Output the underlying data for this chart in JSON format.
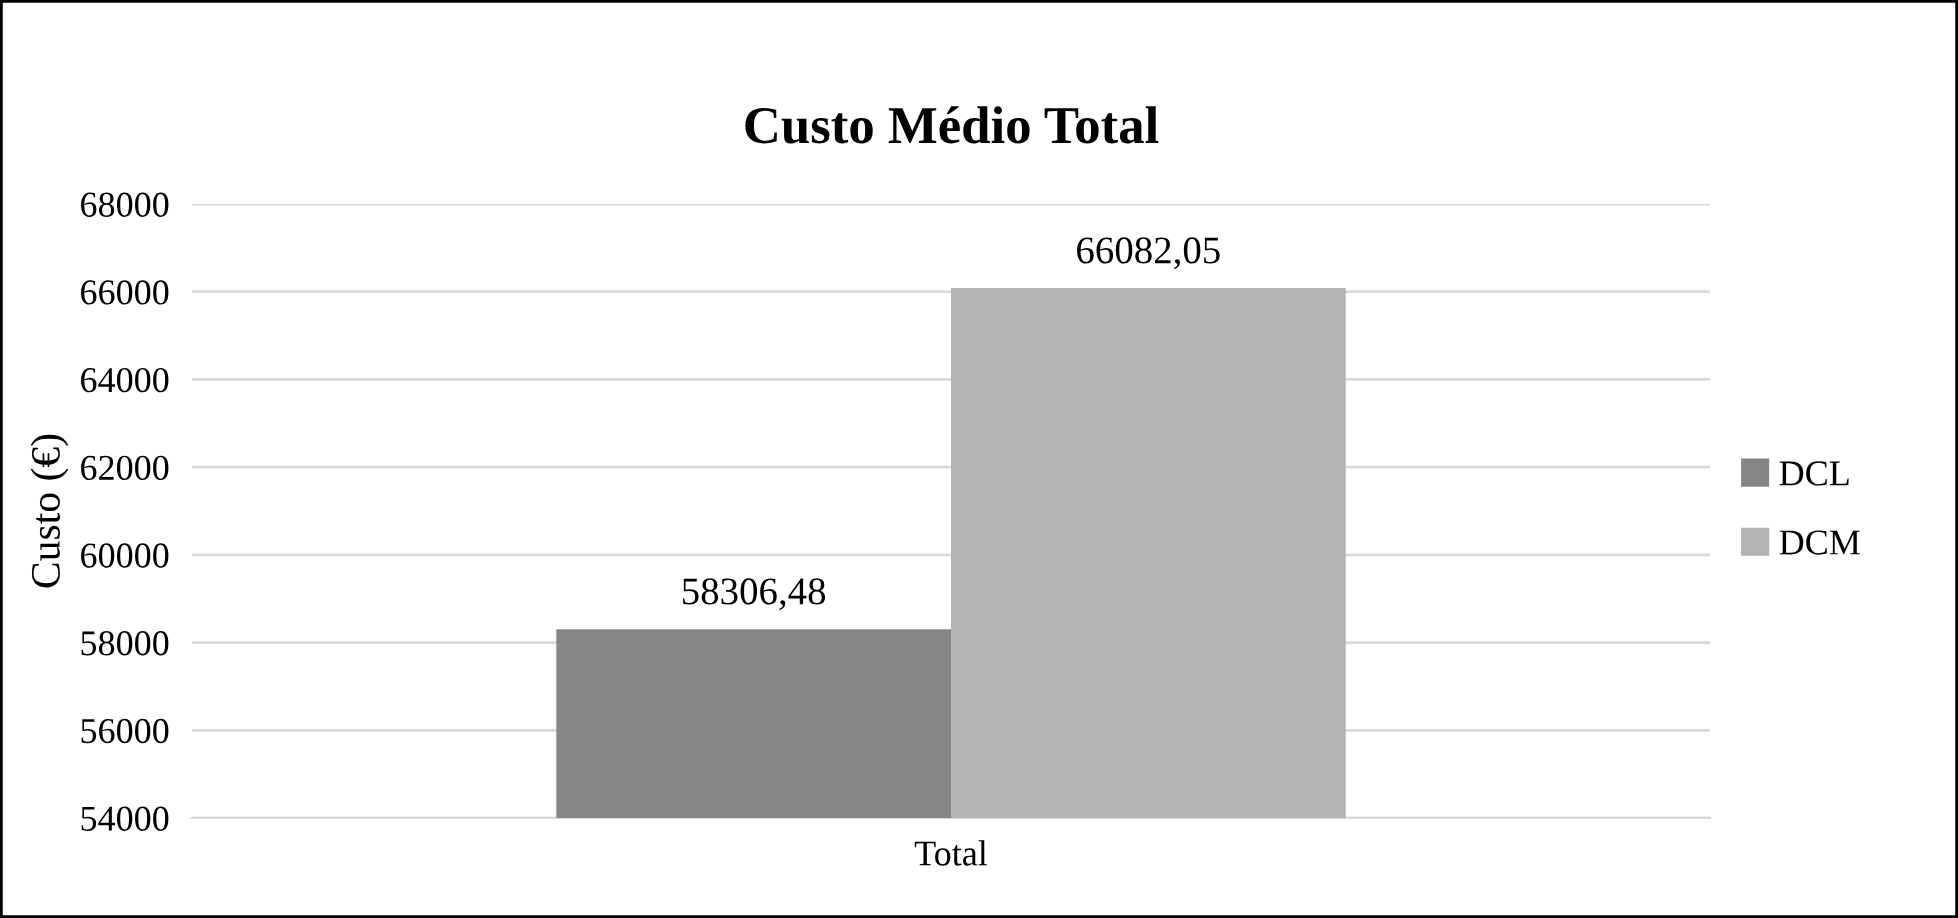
{
  "chart_data": {
    "type": "bar",
    "title": "Custo Médio Total",
    "ylabel": "Custo (€)",
    "categories": [
      "Total"
    ],
    "series": [
      {
        "name": "DCL",
        "color": "#868686",
        "values": [
          58306.48
        ],
        "value_labels": [
          "58306,48"
        ]
      },
      {
        "name": "DCM",
        "color": "#b3b3b3",
        "values": [
          66082.05
        ],
        "value_labels": [
          "66082,05"
        ]
      }
    ],
    "ylim": [
      54000,
      68000
    ],
    "yticks": [
      54000,
      56000,
      58000,
      60000,
      62000,
      64000,
      66000,
      68000
    ],
    "grid": "y",
    "legend": "right"
  }
}
